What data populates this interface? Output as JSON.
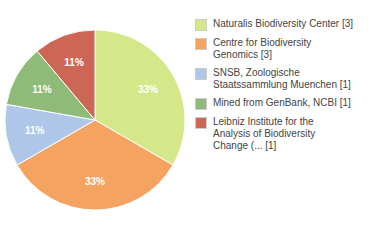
{
  "chart_data": {
    "type": "pie",
    "categories": [
      "Naturalis Biodiversity Center [3]",
      "Centre for Biodiversity\nGenomics [3]",
      "SNSB, Zoologische\nStaatssammlung Muenchen [1]",
      "Mined from GenBank, NCBI [1]",
      "Leibniz Institute for the\nAnalysis of Biodiversity\nChange (... [1]"
    ],
    "values": [
      33,
      33,
      11,
      11,
      11
    ],
    "value_labels": [
      "33%",
      "33%",
      "11%",
      "11%",
      "11%"
    ],
    "colors": [
      "#d4e88a",
      "#f4a460",
      "#aec6e8",
      "#8fba78",
      "#cc6655"
    ],
    "data_labels": true,
    "legend": "right"
  }
}
